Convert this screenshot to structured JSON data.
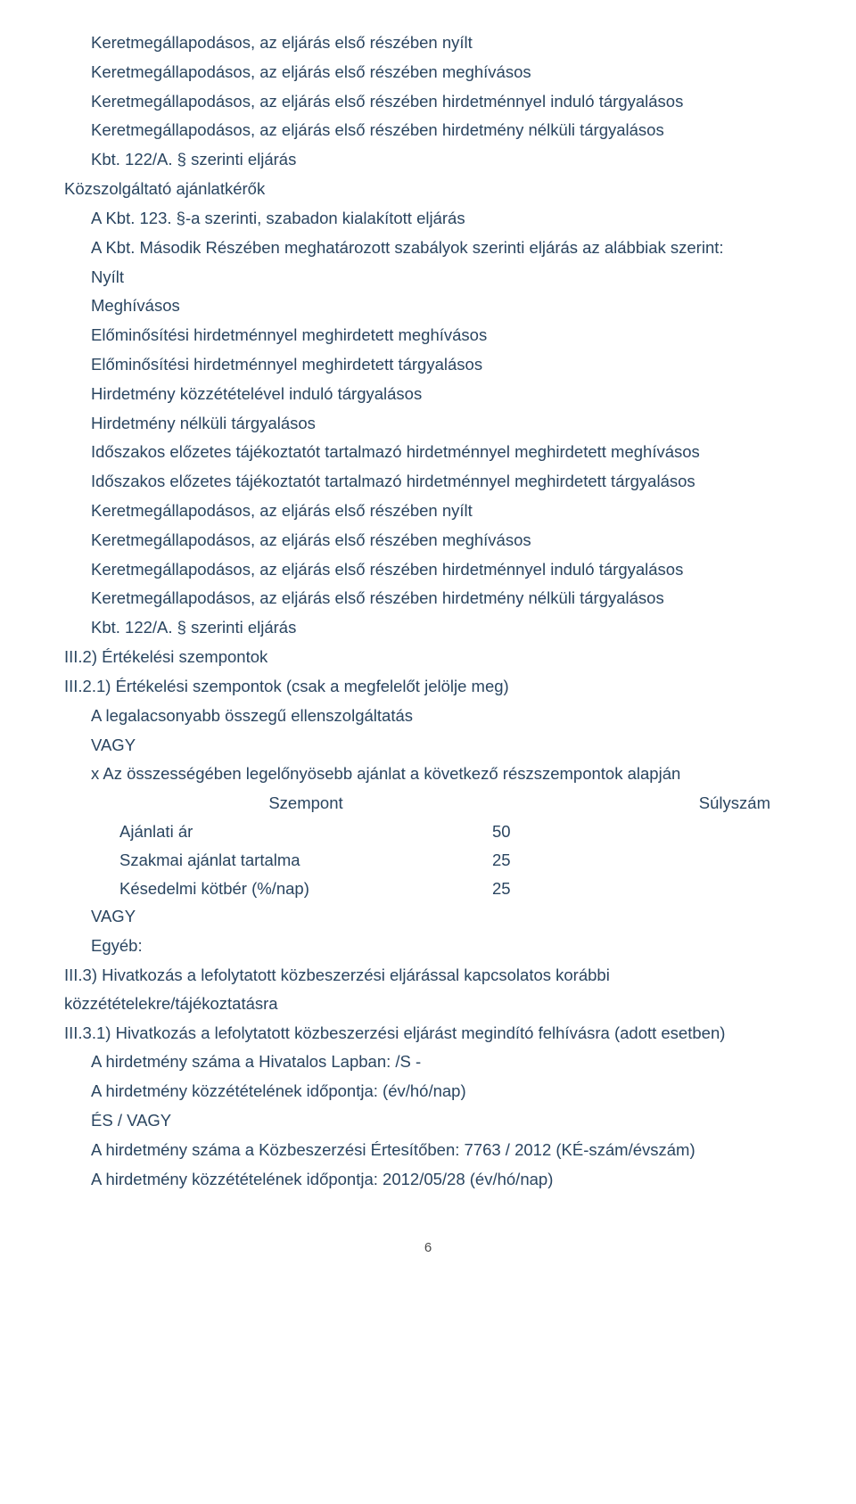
{
  "text_color": "#2a4560",
  "background_color": "#ffffff",
  "font_size": 18.5,
  "line_height": 1.72,
  "paragraphs_top": [
    "Keretmegállapodásos, az eljárás első részében nyílt",
    "Keretmegállapodásos, az eljárás első részében meghívásos",
    "Keretmegállapodásos, az eljárás első részében hirdetménnyel induló tárgyalásos",
    "Keretmegállapodásos, az eljárás első részében hirdetmény nélküli tárgyalásos",
    "Kbt. 122/A. § szerinti eljárás"
  ],
  "para_kozszolg": "Közszolgáltató ajánlatkérők",
  "para_kbt123": "A Kbt. 123. §-a szerinti, szabadon kialakított eljárás",
  "para_masodik": "A Kbt. Második Részében meghatározott szabályok szerinti eljárás az alábbiak szerint:",
  "list_mid": [
    "Nyílt",
    "Meghívásos",
    "Előminősítési hirdetménnyel meghirdetett meghívásos",
    "Előminősítési hirdetménnyel meghirdetett tárgyalásos",
    "Hirdetmény közzétételével induló tárgyalásos",
    "Hirdetmény nélküli tárgyalásos",
    "Időszakos előzetes tájékoztatót tartalmazó hirdetménnyel meghirdetett meghívásos",
    "Időszakos előzetes tájékoztatót tartalmazó hirdetménnyel meghirdetett tárgyalásos",
    "Keretmegállapodásos, az eljárás első részében nyílt",
    "Keretmegállapodásos, az eljárás első részében meghívásos",
    "Keretmegállapodásos, az eljárás első részében hirdetménnyel induló tárgyalásos",
    "Keretmegállapodásos, az eljárás első részében hirdetmény nélküli tárgyalásos",
    "Kbt. 122/A. § szerinti eljárás"
  ],
  "sec_iii2": "III.2) Értékelési szempontok",
  "sec_iii21": "III.2.1) Értékelési szempontok (csak a megfelelőt jelölje meg)",
  "para_legal": "A legalacsonyabb összegű ellenszolgáltatás",
  "vagy": "VAGY",
  "para_x_line": "x Az összességében legelőnyösebb ajánlat a következő részszempontok alapján",
  "table": {
    "type": "table",
    "header": {
      "c1": "Szempont",
      "c2": "Súlyszám"
    },
    "rows": [
      {
        "c1": "Ajánlati ár",
        "c2": "50"
      },
      {
        "c1": "Szakmai ajánlat tartalma",
        "c2": "25"
      },
      {
        "c1": "Késedelmi kötbér (%/nap)",
        "c2": "25"
      }
    ],
    "columns_width": [
      418,
      140
    ],
    "header_align": [
      "center",
      "right"
    ]
  },
  "para_egyeb": "Egyéb:",
  "sec_iii3": "III.3) Hivatkozás a lefolytatott közbeszerzési eljárással kapcsolatos korábbi közzétételekre/tájékoztatásra",
  "sec_iii31": "III.3.1) Hivatkozás a lefolytatott közbeszerzési eljárást megindító felhívásra (adott esetben)",
  "para_hird_hivatalos": "A hirdetmény száma a Hivatalos Lapban: /S -",
  "para_hird_kozzetetel1": "A hirdetmény közzétételének időpontja: (év/hó/nap)",
  "para_es_vagy": "ÉS / VAGY",
  "para_kozbeszerzesi": "A hirdetmény száma a Közbeszerzési Értesítőben: 7763 / 2012 (KÉ-szám/évszám)",
  "para_hird_kozzetetel2": "A hirdetmény közzétételének időpontja: 2012/05/28 (év/hó/nap)",
  "page_number": "6"
}
